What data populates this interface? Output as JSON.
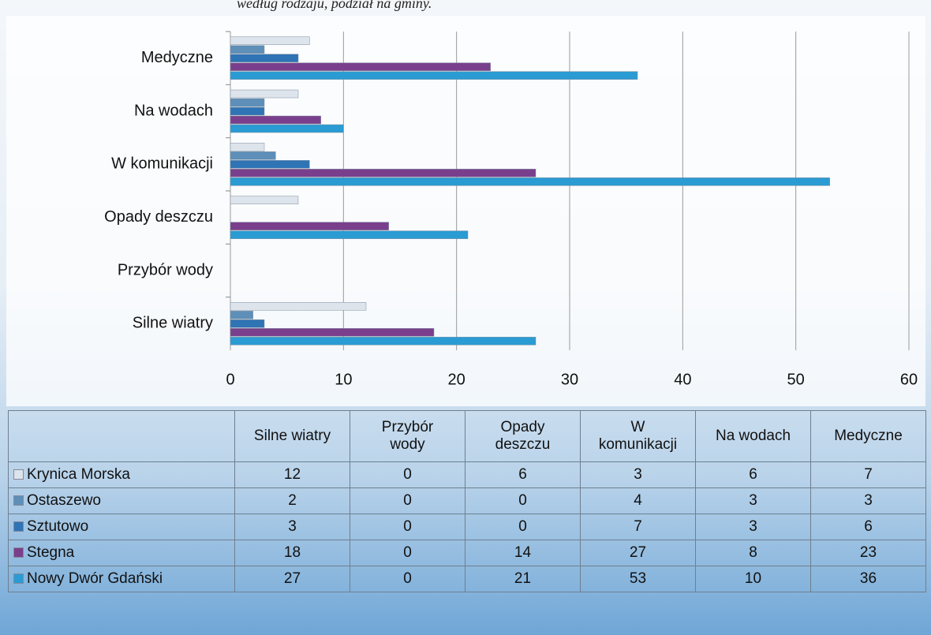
{
  "caption": "według rodzaju, podział na gminy.",
  "chart_data": {
    "type": "bar",
    "orientation": "horizontal",
    "categories": [
      "Silne wiatry",
      "Przybór wody",
      "Opady deszczu",
      "W komunikacji",
      "Na wodach",
      "Medyczne"
    ],
    "series": [
      {
        "name": "Krynica Morska",
        "color": "#dde4ec",
        "values": [
          12,
          0,
          6,
          3,
          6,
          7
        ]
      },
      {
        "name": "Ostaszewo",
        "color": "#5d8fb9",
        "values": [
          2,
          0,
          0,
          4,
          3,
          3
        ]
      },
      {
        "name": "Sztutowo",
        "color": "#2f74b4",
        "values": [
          3,
          0,
          0,
          7,
          3,
          6
        ]
      },
      {
        "name": "Stegna",
        "color": "#7a3f8c",
        "values": [
          18,
          0,
          14,
          27,
          8,
          23
        ]
      },
      {
        "name": "Nowy Dwór Gdański",
        "color": "#2a9bd3",
        "values": [
          27,
          0,
          21,
          53,
          10,
          36
        ]
      }
    ],
    "xlim": [
      0,
      60
    ],
    "xticks": [
      0,
      10,
      20,
      30,
      40,
      50,
      60
    ],
    "grid": true,
    "data_table": true
  }
}
